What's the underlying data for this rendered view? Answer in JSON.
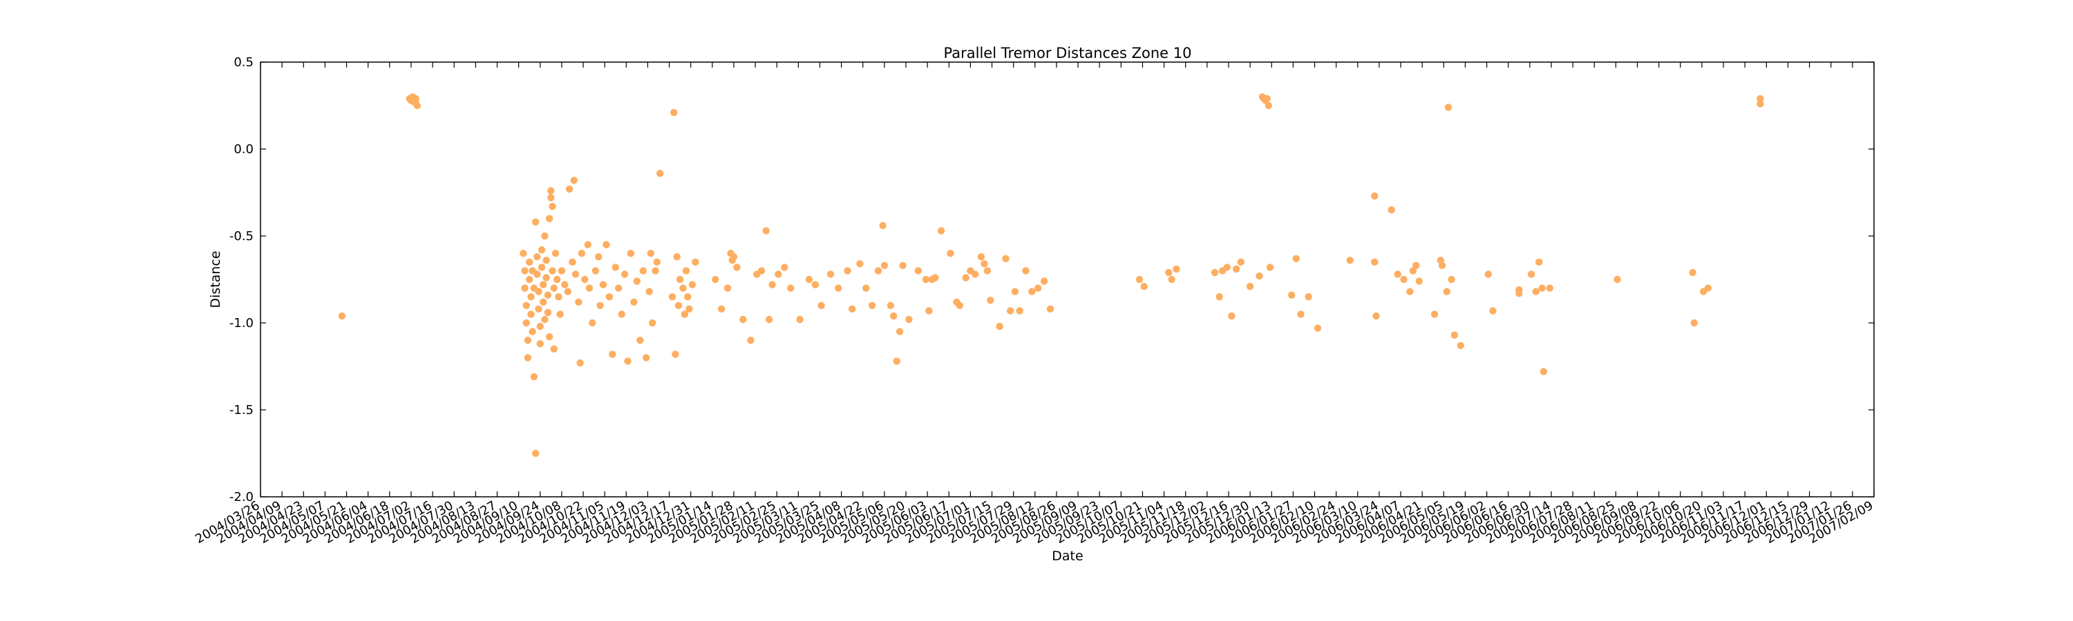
{
  "chart_data": {
    "type": "scatter",
    "title": "Parallel Tremor Distances Zone 10",
    "xlabel": "Date",
    "ylabel": "Distance",
    "xlim": [
      "2004-03-26",
      "2007-02-09"
    ],
    "ylim": [
      -2.0,
      0.5
    ],
    "grid": false,
    "legend": "none",
    "marker_color": "#fdae61",
    "x_ticks": [
      "2004/03/26",
      "2004/04/09",
      "2004/04/23",
      "2004/05/07",
      "2004/05/21",
      "2004/06/04",
      "2004/06/18",
      "2004/07/02",
      "2004/07/16",
      "2004/07/30",
      "2004/08/13",
      "2004/08/27",
      "2004/09/10",
      "2004/09/24",
      "2004/10/08",
      "2004/10/22",
      "2004/11/05",
      "2004/11/19",
      "2004/12/03",
      "2004/12/17",
      "2004/12/31",
      "2005/01/14",
      "2005/01/28",
      "2005/02/11",
      "2005/02/25",
      "2005/03/11",
      "2005/03/25",
      "2005/04/08",
      "2005/04/22",
      "2005/05/06",
      "2005/05/20",
      "2005/06/03",
      "2005/06/17",
      "2005/07/01",
      "2005/07/15",
      "2005/07/29",
      "2005/08/12",
      "2005/08/26",
      "2005/09/09",
      "2005/09/23",
      "2005/10/07",
      "2005/10/21",
      "2005/11/04",
      "2005/11/18",
      "2005/12/02",
      "2005/12/16",
      "2005/12/30",
      "2006/01/13",
      "2006/01/27",
      "2006/02/10",
      "2006/02/24",
      "2006/03/10",
      "2006/03/24",
      "2006/04/07",
      "2006/04/21",
      "2006/05/05",
      "2006/05/19",
      "2006/06/02",
      "2006/06/16",
      "2006/06/30",
      "2006/07/14",
      "2006/07/28",
      "2006/08/11",
      "2006/08/25",
      "2006/09/08",
      "2006/09/22",
      "2006/10/06",
      "2006/10/20",
      "2006/11/03",
      "2006/11/17",
      "2006/12/01",
      "2006/12/15",
      "2006/12/29",
      "2007/01/12",
      "2007/01/26",
      "2007/02/09"
    ],
    "y_ticks": [
      "0.5",
      "0.0",
      "-0.5",
      "-1.0",
      "-1.5",
      "-2.0"
    ],
    "points": [
      [
        "2004-05-18",
        -0.96
      ],
      [
        "2004-07-01",
        0.29
      ],
      [
        "2004-07-02",
        0.28
      ],
      [
        "2004-07-03",
        0.3
      ],
      [
        "2004-07-04",
        0.27
      ],
      [
        "2004-07-05",
        0.29
      ],
      [
        "2004-07-06",
        0.25
      ],
      [
        "2004-07-05",
        0.28
      ],
      [
        "2004-09-13",
        -0.6
      ],
      [
        "2004-09-14",
        -0.7
      ],
      [
        "2004-09-14",
        -0.8
      ],
      [
        "2004-09-15",
        -0.9
      ],
      [
        "2004-09-15",
        -1.0
      ],
      [
        "2004-09-16",
        -1.1
      ],
      [
        "2004-09-16",
        -1.2
      ],
      [
        "2004-09-17",
        -0.65
      ],
      [
        "2004-09-17",
        -0.75
      ],
      [
        "2004-09-18",
        -0.85
      ],
      [
        "2004-09-18",
        -0.95
      ],
      [
        "2004-09-19",
        -1.05
      ],
      [
        "2004-09-19",
        -0.7
      ],
      [
        "2004-09-20",
        -0.8
      ],
      [
        "2004-09-20",
        -1.31
      ],
      [
        "2004-09-21",
        -1.75
      ],
      [
        "2004-09-21",
        -0.42
      ],
      [
        "2004-09-22",
        -0.62
      ],
      [
        "2004-09-22",
        -0.72
      ],
      [
        "2004-09-23",
        -0.82
      ],
      [
        "2004-09-23",
        -0.92
      ],
      [
        "2004-09-24",
        -1.02
      ],
      [
        "2004-09-24",
        -1.12
      ],
      [
        "2004-09-25",
        -0.58
      ],
      [
        "2004-09-25",
        -0.68
      ],
      [
        "2004-09-26",
        -0.78
      ],
      [
        "2004-09-26",
        -0.88
      ],
      [
        "2004-09-27",
        -0.98
      ],
      [
        "2004-09-27",
        -0.5
      ],
      [
        "2004-09-28",
        -0.64
      ],
      [
        "2004-09-28",
        -0.74
      ],
      [
        "2004-09-29",
        -0.84
      ],
      [
        "2004-09-29",
        -0.94
      ],
      [
        "2004-09-30",
        -1.08
      ],
      [
        "2004-09-30",
        -0.4
      ],
      [
        "2004-10-01",
        -0.24
      ],
      [
        "2004-10-01",
        -0.28
      ],
      [
        "2004-10-02",
        -0.33
      ],
      [
        "2004-10-02",
        -0.7
      ],
      [
        "2004-10-03",
        -0.8
      ],
      [
        "2004-10-03",
        -1.15
      ],
      [
        "2004-10-04",
        -0.6
      ],
      [
        "2004-10-05",
        -0.75
      ],
      [
        "2004-10-06",
        -0.85
      ],
      [
        "2004-10-07",
        -0.95
      ],
      [
        "2004-10-08",
        -0.7
      ],
      [
        "2004-10-10",
        -0.78
      ],
      [
        "2004-10-12",
        -0.82
      ],
      [
        "2004-10-13",
        -0.23
      ],
      [
        "2004-10-15",
        -0.65
      ],
      [
        "2004-10-16",
        -0.18
      ],
      [
        "2004-10-17",
        -0.72
      ],
      [
        "2004-10-19",
        -0.88
      ],
      [
        "2004-10-20",
        -1.23
      ],
      [
        "2004-10-21",
        -0.6
      ],
      [
        "2004-10-23",
        -0.75
      ],
      [
        "2004-10-25",
        -0.55
      ],
      [
        "2004-10-26",
        -0.8
      ],
      [
        "2004-10-28",
        -1.0
      ],
      [
        "2004-10-30",
        -0.7
      ],
      [
        "2004-11-01",
        -0.62
      ],
      [
        "2004-11-02",
        -0.9
      ],
      [
        "2004-11-04",
        -0.78
      ],
      [
        "2004-11-06",
        -0.55
      ],
      [
        "2004-11-08",
        -0.85
      ],
      [
        "2004-11-10",
        -1.18
      ],
      [
        "2004-11-12",
        -0.68
      ],
      [
        "2004-11-14",
        -0.8
      ],
      [
        "2004-11-16",
        -0.95
      ],
      [
        "2004-11-18",
        -0.72
      ],
      [
        "2004-11-20",
        -1.22
      ],
      [
        "2004-11-22",
        -0.6
      ],
      [
        "2004-11-24",
        -0.88
      ],
      [
        "2004-11-26",
        -0.76
      ],
      [
        "2004-11-28",
        -1.1
      ],
      [
        "2004-11-30",
        -0.7
      ],
      [
        "2004-12-02",
        -1.2
      ],
      [
        "2004-12-04",
        -0.82
      ],
      [
        "2004-12-05",
        -0.6
      ],
      [
        "2004-12-06",
        -1.0
      ],
      [
        "2004-12-08",
        -0.7
      ],
      [
        "2004-12-09",
        -0.65
      ],
      [
        "2004-12-11",
        -0.14
      ],
      [
        "2004-12-19",
        -0.85
      ],
      [
        "2004-12-20",
        0.21
      ],
      [
        "2004-12-21",
        -1.18
      ],
      [
        "2004-12-22",
        -0.62
      ],
      [
        "2004-12-23",
        -0.9
      ],
      [
        "2004-12-24",
        -0.75
      ],
      [
        "2004-12-26",
        -0.8
      ],
      [
        "2004-12-27",
        -0.95
      ],
      [
        "2004-12-28",
        -0.7
      ],
      [
        "2004-12-29",
        -0.85
      ],
      [
        "2004-12-30",
        -0.92
      ],
      [
        "2005-01-01",
        -0.78
      ],
      [
        "2005-01-03",
        -0.65
      ],
      [
        "2005-01-16",
        -0.75
      ],
      [
        "2005-01-20",
        -0.92
      ],
      [
        "2005-01-24",
        -0.8
      ],
      [
        "2005-01-26",
        -0.6
      ],
      [
        "2005-01-27",
        -0.64
      ],
      [
        "2005-01-28",
        -0.62
      ],
      [
        "2005-01-30",
        -0.68
      ],
      [
        "2005-02-03",
        -0.98
      ],
      [
        "2005-02-08",
        -1.1
      ],
      [
        "2005-02-12",
        -0.72
      ],
      [
        "2005-02-15",
        -0.7
      ],
      [
        "2005-02-18",
        -0.47
      ],
      [
        "2005-02-20",
        -0.98
      ],
      [
        "2005-02-22",
        -0.78
      ],
      [
        "2005-02-26",
        -0.72
      ],
      [
        "2005-03-02",
        -0.68
      ],
      [
        "2005-03-06",
        -0.8
      ],
      [
        "2005-03-12",
        -0.98
      ],
      [
        "2005-03-18",
        -0.75
      ],
      [
        "2005-03-22",
        -0.78
      ],
      [
        "2005-03-26",
        -0.9
      ],
      [
        "2005-04-01",
        -0.72
      ],
      [
        "2005-04-06",
        -0.8
      ],
      [
        "2005-04-12",
        -0.7
      ],
      [
        "2005-04-15",
        -0.92
      ],
      [
        "2005-04-20",
        -0.66
      ],
      [
        "2005-04-24",
        -0.8
      ],
      [
        "2005-04-28",
        -0.9
      ],
      [
        "2005-05-02",
        -0.7
      ],
      [
        "2005-05-05",
        -0.44
      ],
      [
        "2005-05-06",
        -0.67
      ],
      [
        "2005-05-10",
        -0.9
      ],
      [
        "2005-05-12",
        -0.96
      ],
      [
        "2005-05-14",
        -1.22
      ],
      [
        "2005-05-16",
        -1.05
      ],
      [
        "2005-05-18",
        -0.67
      ],
      [
        "2005-05-22",
        -0.98
      ],
      [
        "2005-05-28",
        -0.7
      ],
      [
        "2005-06-02",
        -0.75
      ],
      [
        "2005-06-04",
        -0.93
      ],
      [
        "2005-06-06",
        -0.75
      ],
      [
        "2005-06-08",
        -0.74
      ],
      [
        "2005-06-12",
        -0.47
      ],
      [
        "2005-06-18",
        -0.6
      ],
      [
        "2005-06-22",
        -0.88
      ],
      [
        "2005-06-24",
        -0.9
      ],
      [
        "2005-06-28",
        -0.74
      ],
      [
        "2005-07-01",
        -0.7
      ],
      [
        "2005-07-04",
        -0.72
      ],
      [
        "2005-07-08",
        -0.62
      ],
      [
        "2005-07-10",
        -0.66
      ],
      [
        "2005-07-12",
        -0.7
      ],
      [
        "2005-07-14",
        -0.87
      ],
      [
        "2005-07-20",
        -1.02
      ],
      [
        "2005-07-24",
        -0.63
      ],
      [
        "2005-07-27",
        -0.93
      ],
      [
        "2005-07-30",
        -0.82
      ],
      [
        "2005-08-02",
        -0.93
      ],
      [
        "2005-08-06",
        -0.7
      ],
      [
        "2005-08-10",
        -0.82
      ],
      [
        "2005-08-14",
        -0.8
      ],
      [
        "2005-08-18",
        -0.76
      ],
      [
        "2005-08-22",
        -0.92
      ],
      [
        "2005-10-19",
        -0.75
      ],
      [
        "2005-10-22",
        -0.79
      ],
      [
        "2005-11-07",
        -0.71
      ],
      [
        "2005-11-09",
        -0.75
      ],
      [
        "2005-11-12",
        -0.69
      ],
      [
        "2005-12-07",
        -0.71
      ],
      [
        "2005-12-10",
        -0.85
      ],
      [
        "2005-12-12",
        -0.7
      ],
      [
        "2005-12-15",
        -0.68
      ],
      [
        "2005-12-18",
        -0.96
      ],
      [
        "2005-12-21",
        -0.69
      ],
      [
        "2005-12-24",
        -0.65
      ],
      [
        "2005-12-30",
        -0.79
      ],
      [
        "2006-01-05",
        -0.73
      ],
      [
        "2006-01-07",
        0.3
      ],
      [
        "2006-01-08",
        0.29
      ],
      [
        "2006-01-09",
        0.28
      ],
      [
        "2006-01-10",
        0.29
      ],
      [
        "2006-01-11",
        0.25
      ],
      [
        "2006-01-12",
        -0.68
      ],
      [
        "2006-01-26",
        -0.84
      ],
      [
        "2006-01-29",
        -0.63
      ],
      [
        "2006-02-01",
        -0.95
      ],
      [
        "2006-02-06",
        -0.85
      ],
      [
        "2006-02-12",
        -1.03
      ],
      [
        "2006-03-05",
        -0.64
      ],
      [
        "2006-03-21",
        -0.27
      ],
      [
        "2006-03-21",
        -0.65
      ],
      [
        "2006-03-22",
        -0.96
      ],
      [
        "2006-04-01",
        -0.35
      ],
      [
        "2006-04-05",
        -0.72
      ],
      [
        "2006-04-09",
        -0.75
      ],
      [
        "2006-04-13",
        -0.82
      ],
      [
        "2006-04-15",
        -0.7
      ],
      [
        "2006-04-17",
        -0.67
      ],
      [
        "2006-04-19",
        -0.76
      ],
      [
        "2006-04-29",
        -0.95
      ],
      [
        "2006-05-03",
        -0.64
      ],
      [
        "2006-05-04",
        -0.67
      ],
      [
        "2006-05-07",
        -0.82
      ],
      [
        "2006-05-08",
        0.24
      ],
      [
        "2006-05-10",
        -0.75
      ],
      [
        "2006-05-12",
        -1.07
      ],
      [
        "2006-05-16",
        -1.13
      ],
      [
        "2006-06-03",
        -0.72
      ],
      [
        "2006-06-06",
        -0.93
      ],
      [
        "2006-06-23",
        -0.83
      ],
      [
        "2006-06-23",
        -0.81
      ],
      [
        "2006-07-01",
        -0.72
      ],
      [
        "2006-07-04",
        -0.82
      ],
      [
        "2006-07-06",
        -0.65
      ],
      [
        "2006-07-08",
        -0.8
      ],
      [
        "2006-07-09",
        -1.28
      ],
      [
        "2006-07-13",
        -0.8
      ],
      [
        "2006-08-26",
        -0.75
      ],
      [
        "2006-10-14",
        -0.71
      ],
      [
        "2006-10-15",
        -1.0
      ],
      [
        "2006-10-21",
        -0.82
      ],
      [
        "2006-10-24",
        -0.8
      ],
      [
        "2006-11-27",
        0.26
      ],
      [
        "2006-11-27",
        0.29
      ]
    ]
  }
}
